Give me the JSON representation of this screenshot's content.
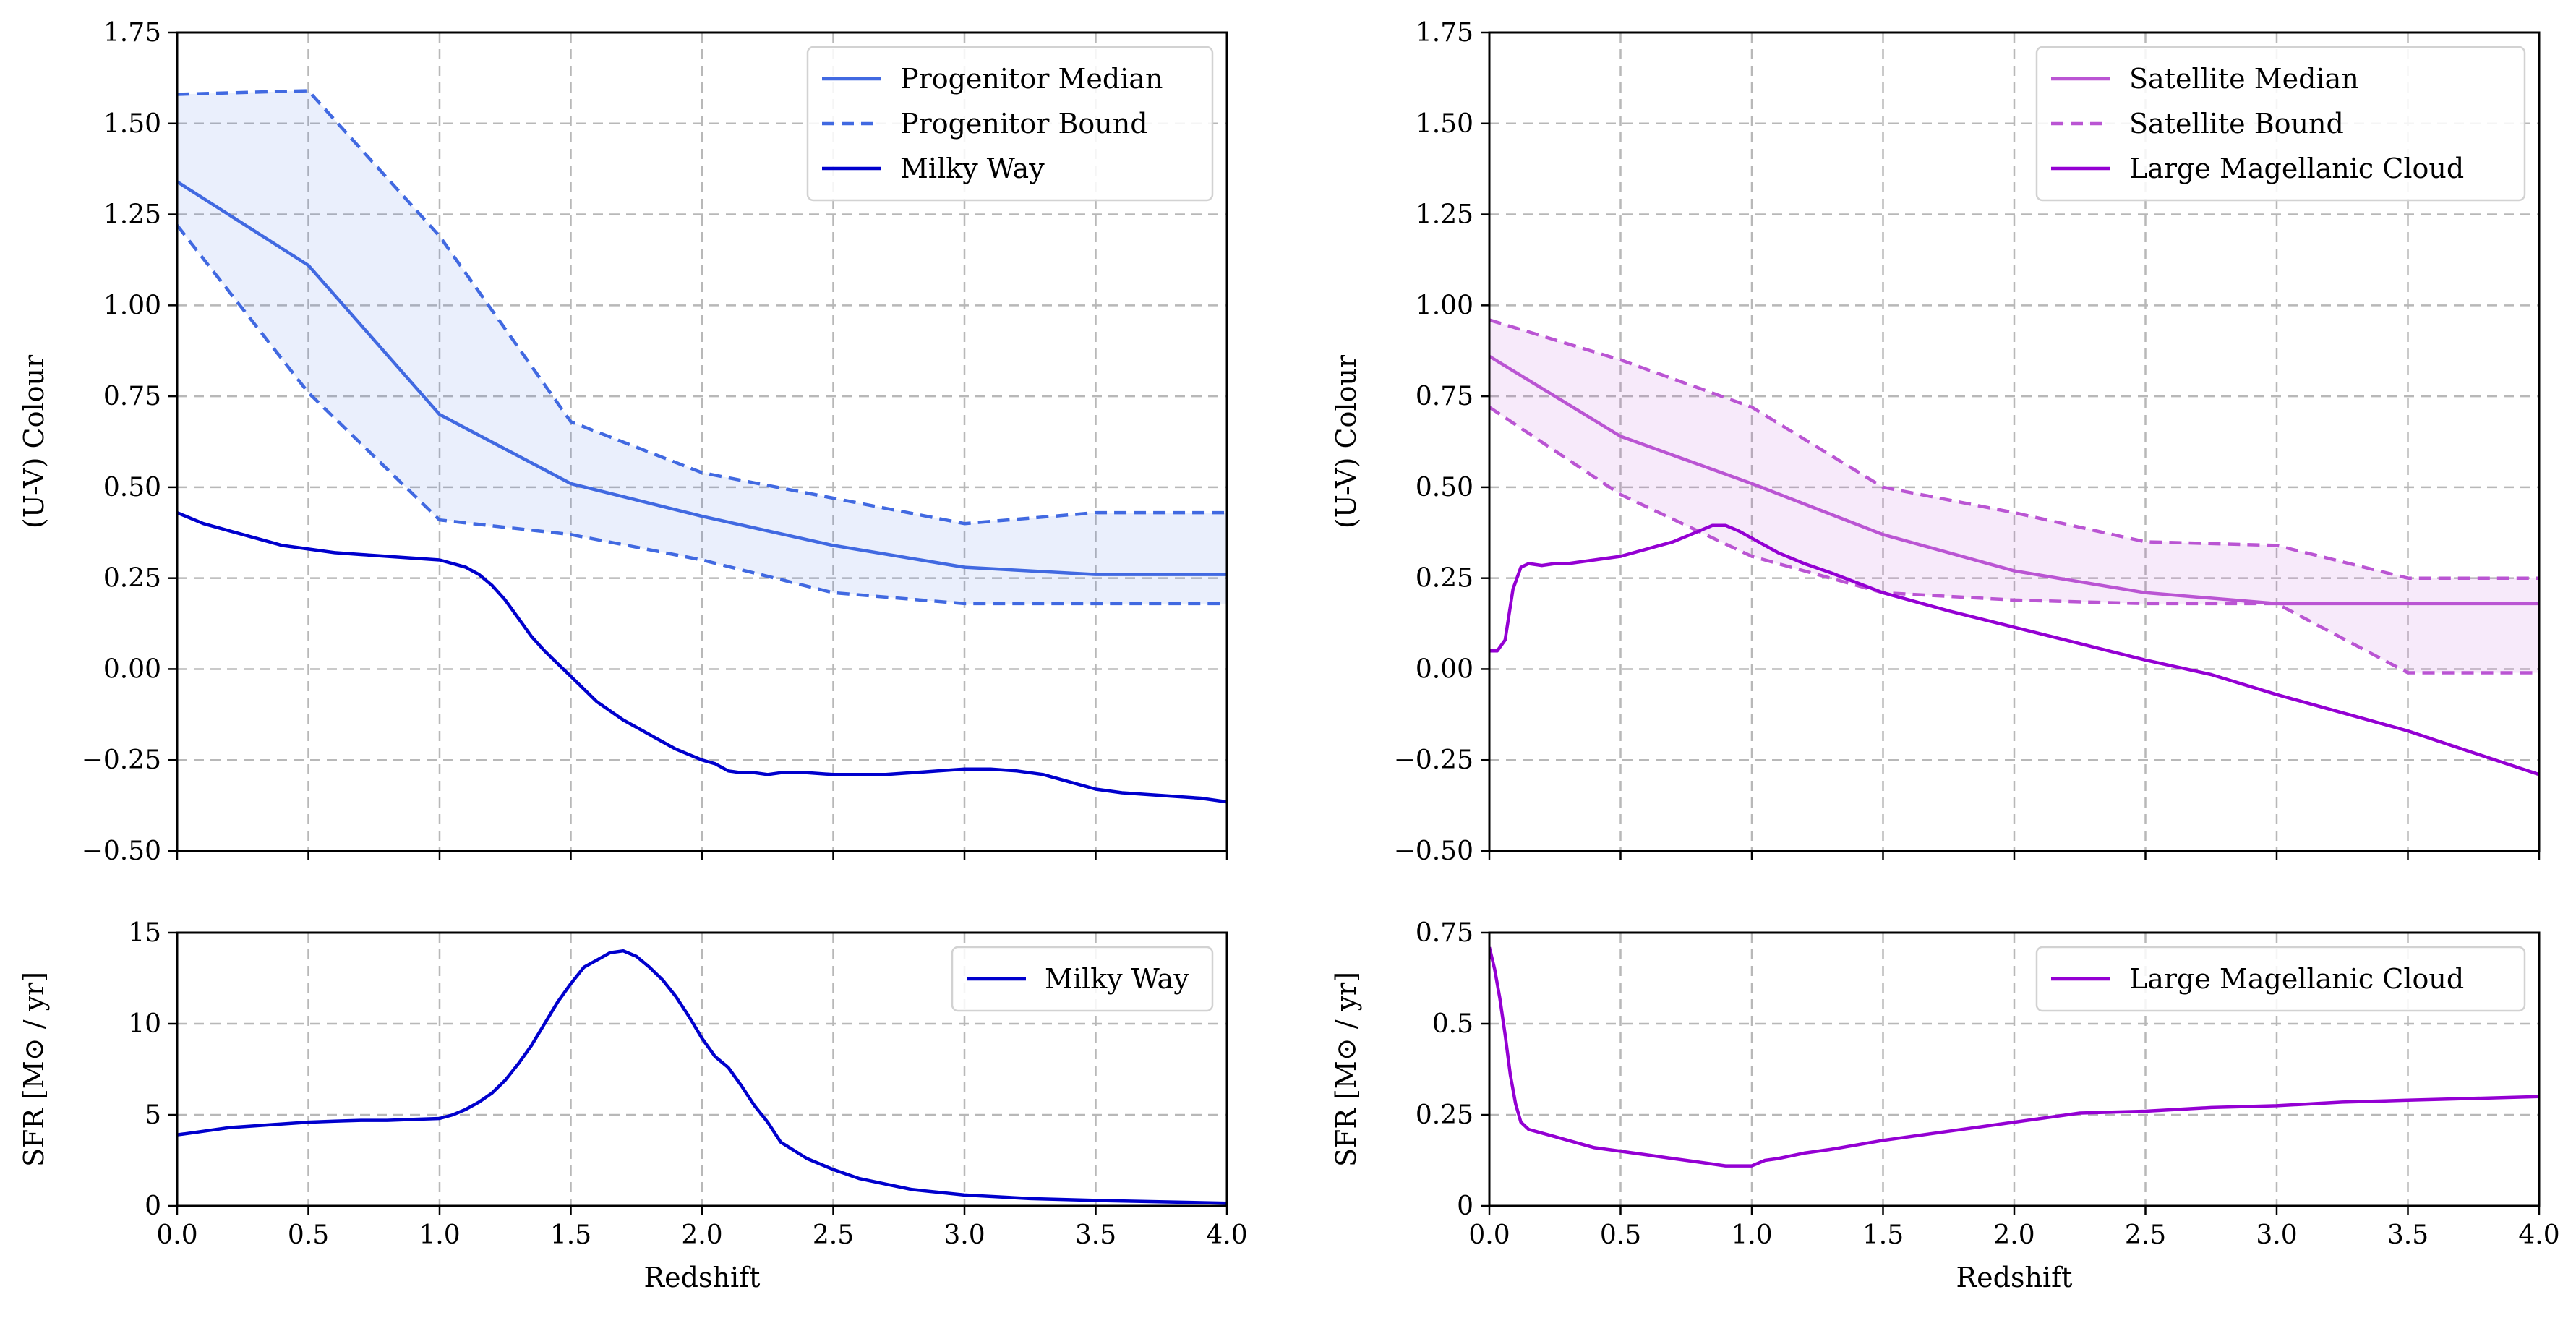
{
  "chart_data": [
    {
      "id": "colour-mw",
      "type": "line",
      "title": "",
      "xlabel": "",
      "ylabel": "(U-V) Colour",
      "xlim": [
        0,
        4
      ],
      "ylim": [
        -0.5,
        1.75
      ],
      "xticks": [
        0,
        0.5,
        1,
        1.5,
        2,
        2.5,
        3,
        3.5,
        4
      ],
      "yticks": [
        -0.5,
        -0.25,
        0.0,
        0.25,
        0.5,
        0.75,
        1.0,
        1.25,
        1.5,
        1.75
      ],
      "ytick_labels": [
        "−0.50",
        "−0.25",
        "0.00",
        "0.25",
        "0.50",
        "0.75",
        "1.00",
        "1.25",
        "1.50",
        "1.75"
      ],
      "grid": true,
      "legend_position": "top-right",
      "fill_between": {
        "lower": "Progenitor Bound (lower)",
        "upper": "Progenitor Bound (upper)",
        "color": "#4169e1",
        "opacity": 0.11
      },
      "series": [
        {
          "name": "Progenitor Median",
          "legend": true,
          "color": "#4169e1",
          "dash": "solid",
          "x": [
            0,
            0.5,
            1,
            1.5,
            2,
            2.5,
            3,
            3.5,
            4
          ],
          "y": [
            1.34,
            1.11,
            0.7,
            0.51,
            0.42,
            0.34,
            0.28,
            0.26,
            0.26
          ]
        },
        {
          "name": "Progenitor Bound",
          "legend": true,
          "color": "#4169e1",
          "dash": "dashed",
          "x": [
            0,
            0.5,
            1,
            1.5,
            2,
            2.5,
            3,
            3.5,
            4
          ],
          "y": [
            1.58,
            1.59,
            1.19,
            0.68,
            0.54,
            0.47,
            0.4,
            0.43,
            0.43
          ]
        },
        {
          "name": "Progenitor Bound (lower)",
          "legend": false,
          "color": "#4169e1",
          "dash": "dashed",
          "x": [
            0,
            0.5,
            1,
            1.5,
            2,
            2.5,
            3,
            3.5,
            4
          ],
          "y": [
            1.22,
            0.76,
            0.41,
            0.37,
            0.3,
            0.21,
            0.18,
            0.18,
            0.18
          ]
        },
        {
          "name": "Milky Way",
          "legend": true,
          "color": "#0000cd",
          "dash": "solid",
          "x": [
            0,
            0.1,
            0.2,
            0.3,
            0.4,
            0.5,
            0.6,
            0.7,
            0.8,
            0.9,
            1.0,
            1.05,
            1.1,
            1.15,
            1.2,
            1.25,
            1.3,
            1.35,
            1.4,
            1.5,
            1.6,
            1.7,
            1.8,
            1.9,
            2.0,
            2.05,
            2.1,
            2.15,
            2.2,
            2.25,
            2.3,
            2.4,
            2.5,
            2.6,
            2.7,
            2.8,
            2.9,
            3.0,
            3.1,
            3.2,
            3.3,
            3.4,
            3.5,
            3.6,
            3.7,
            3.8,
            3.9,
            4.0
          ],
          "y": [
            0.43,
            0.4,
            0.38,
            0.36,
            0.34,
            0.33,
            0.32,
            0.315,
            0.31,
            0.305,
            0.3,
            0.29,
            0.28,
            0.26,
            0.23,
            0.19,
            0.14,
            0.09,
            0.05,
            -0.02,
            -0.09,
            -0.14,
            -0.18,
            -0.22,
            -0.25,
            -0.26,
            -0.28,
            -0.285,
            -0.285,
            -0.29,
            -0.285,
            -0.285,
            -0.29,
            -0.29,
            -0.29,
            -0.285,
            -0.28,
            -0.275,
            -0.275,
            -0.28,
            -0.29,
            -0.31,
            -0.33,
            -0.34,
            -0.345,
            -0.35,
            -0.355,
            -0.365
          ]
        }
      ]
    },
    {
      "id": "colour-lmc",
      "type": "line",
      "title": "",
      "xlabel": "",
      "ylabel": "(U-V) Colour",
      "xlim": [
        0,
        4
      ],
      "ylim": [
        -0.5,
        1.75
      ],
      "xticks": [
        0,
        0.5,
        1,
        1.5,
        2,
        2.5,
        3,
        3.5,
        4
      ],
      "yticks": [
        -0.5,
        -0.25,
        0.0,
        0.25,
        0.5,
        0.75,
        1.0,
        1.25,
        1.5,
        1.75
      ],
      "ytick_labels": [
        "−0.50",
        "−0.25",
        "0.00",
        "0.25",
        "0.50",
        "0.75",
        "1.00",
        "1.25",
        "1.50",
        "1.75"
      ],
      "grid": true,
      "legend_position": "top-right",
      "fill_between": {
        "lower": "Satellite Bound (lower)",
        "upper": "Satellite Bound (upper)",
        "color": "#ba55d3",
        "opacity": 0.12
      },
      "series": [
        {
          "name": "Satellite Median",
          "legend": true,
          "color": "#ba55d3",
          "dash": "solid",
          "x": [
            0,
            0.5,
            1,
            1.5,
            2,
            2.5,
            3,
            3.5,
            4
          ],
          "y": [
            0.86,
            0.64,
            0.51,
            0.37,
            0.27,
            0.21,
            0.18,
            0.18,
            0.18
          ]
        },
        {
          "name": "Satellite Bound",
          "legend": true,
          "color": "#ba55d3",
          "dash": "dashed",
          "x": [
            0,
            0.5,
            1,
            1.5,
            2,
            2.5,
            3,
            3.5,
            4
          ],
          "y": [
            0.96,
            0.85,
            0.72,
            0.5,
            0.43,
            0.35,
            0.34,
            0.25,
            0.25
          ]
        },
        {
          "name": "Satellite Bound (lower)",
          "legend": false,
          "color": "#ba55d3",
          "dash": "dashed",
          "x": [
            0,
            0.5,
            1,
            1.5,
            2,
            2.5,
            3,
            3.5,
            4
          ],
          "y": [
            0.72,
            0.48,
            0.31,
            0.21,
            0.19,
            0.18,
            0.18,
            -0.01,
            -0.01
          ]
        },
        {
          "name": "Large Magellanic Cloud",
          "legend": true,
          "color": "#9400d3",
          "dash": "solid",
          "x": [
            0,
            0.03,
            0.06,
            0.09,
            0.12,
            0.15,
            0.2,
            0.25,
            0.3,
            0.4,
            0.5,
            0.6,
            0.7,
            0.8,
            0.85,
            0.9,
            0.95,
            1.0,
            1.05,
            1.1,
            1.2,
            1.3,
            1.5,
            1.75,
            2.0,
            2.25,
            2.5,
            2.75,
            3.0,
            3.25,
            3.5,
            3.75,
            4.0
          ],
          "y": [
            0.05,
            0.05,
            0.08,
            0.22,
            0.28,
            0.29,
            0.285,
            0.29,
            0.29,
            0.3,
            0.31,
            0.33,
            0.35,
            0.38,
            0.395,
            0.395,
            0.38,
            0.36,
            0.34,
            0.32,
            0.29,
            0.265,
            0.21,
            0.16,
            0.115,
            0.07,
            0.025,
            -0.015,
            -0.07,
            -0.12,
            -0.17,
            -0.23,
            -0.29
          ]
        }
      ]
    },
    {
      "id": "sfr-mw",
      "type": "line",
      "title": "",
      "xlabel": "Redshift",
      "ylabel": "SFR [M⊙ / yr]",
      "xlim": [
        0,
        4
      ],
      "ylim": [
        0,
        15
      ],
      "xticks": [
        0,
        0.5,
        1,
        1.5,
        2,
        2.5,
        3,
        3.5,
        4
      ],
      "xtick_labels": [
        "0.0",
        "0.5",
        "1.0",
        "1.5",
        "2.0",
        "2.5",
        "3.0",
        "3.5",
        "4.0"
      ],
      "yticks": [
        0,
        5,
        10,
        15
      ],
      "ytick_labels": [
        "0",
        "5",
        "10",
        "15"
      ],
      "grid": true,
      "legend_position": "top-right",
      "series": [
        {
          "name": "Milky Way",
          "legend": true,
          "color": "#0000cd",
          "dash": "solid",
          "x": [
            0,
            0.1,
            0.2,
            0.3,
            0.4,
            0.5,
            0.6,
            0.7,
            0.8,
            0.9,
            1.0,
            1.05,
            1.1,
            1.15,
            1.2,
            1.25,
            1.3,
            1.35,
            1.4,
            1.45,
            1.5,
            1.55,
            1.6,
            1.65,
            1.7,
            1.75,
            1.8,
            1.85,
            1.9,
            1.95,
            2.0,
            2.05,
            2.1,
            2.15,
            2.2,
            2.25,
            2.3,
            2.4,
            2.5,
            2.6,
            2.7,
            2.8,
            3.0,
            3.25,
            3.5,
            4.0
          ],
          "y": [
            3.9,
            4.1,
            4.3,
            4.4,
            4.5,
            4.6,
            4.65,
            4.7,
            4.7,
            4.75,
            4.8,
            5.0,
            5.3,
            5.7,
            6.2,
            6.9,
            7.8,
            8.8,
            10.0,
            11.2,
            12.2,
            13.1,
            13.5,
            13.9,
            14.0,
            13.7,
            13.1,
            12.4,
            11.5,
            10.4,
            9.2,
            8.2,
            7.6,
            6.6,
            5.5,
            4.6,
            3.5,
            2.6,
            2.0,
            1.5,
            1.2,
            0.9,
            0.6,
            0.4,
            0.3,
            0.15
          ]
        }
      ]
    },
    {
      "id": "sfr-lmc",
      "type": "line",
      "title": "",
      "xlabel": "Redshift",
      "ylabel": "SFR [M⊙ / yr]",
      "xlim": [
        0,
        4
      ],
      "ylim": [
        0,
        0.75
      ],
      "xticks": [
        0,
        0.5,
        1,
        1.5,
        2,
        2.5,
        3,
        3.5,
        4
      ],
      "xtick_labels": [
        "0.0",
        "0.5",
        "1.0",
        "1.5",
        "2.0",
        "2.5",
        "3.0",
        "3.5",
        "4.0"
      ],
      "yticks": [
        0,
        0.25,
        0.5,
        0.75
      ],
      "ytick_labels": [
        "0",
        "0.25",
        "0.5",
        "0.75"
      ],
      "grid": true,
      "legend_position": "top-right",
      "series": [
        {
          "name": "Large Magellanic Cloud",
          "legend": true,
          "color": "#9400d3",
          "dash": "solid",
          "x": [
            0,
            0.02,
            0.04,
            0.06,
            0.08,
            0.1,
            0.12,
            0.15,
            0.2,
            0.25,
            0.3,
            0.4,
            0.5,
            0.6,
            0.7,
            0.8,
            0.9,
            0.95,
            1.0,
            1.05,
            1.1,
            1.2,
            1.3,
            1.5,
            1.75,
            2.0,
            2.25,
            2.5,
            2.75,
            3.0,
            3.25,
            3.5,
            3.75,
            4.0
          ],
          "y": [
            0.71,
            0.65,
            0.57,
            0.47,
            0.36,
            0.28,
            0.23,
            0.21,
            0.2,
            0.19,
            0.18,
            0.16,
            0.15,
            0.14,
            0.13,
            0.12,
            0.11,
            0.11,
            0.11,
            0.125,
            0.13,
            0.145,
            0.155,
            0.18,
            0.205,
            0.23,
            0.255,
            0.26,
            0.27,
            0.275,
            0.285,
            0.29,
            0.295,
            0.3
          ]
        }
      ]
    }
  ]
}
